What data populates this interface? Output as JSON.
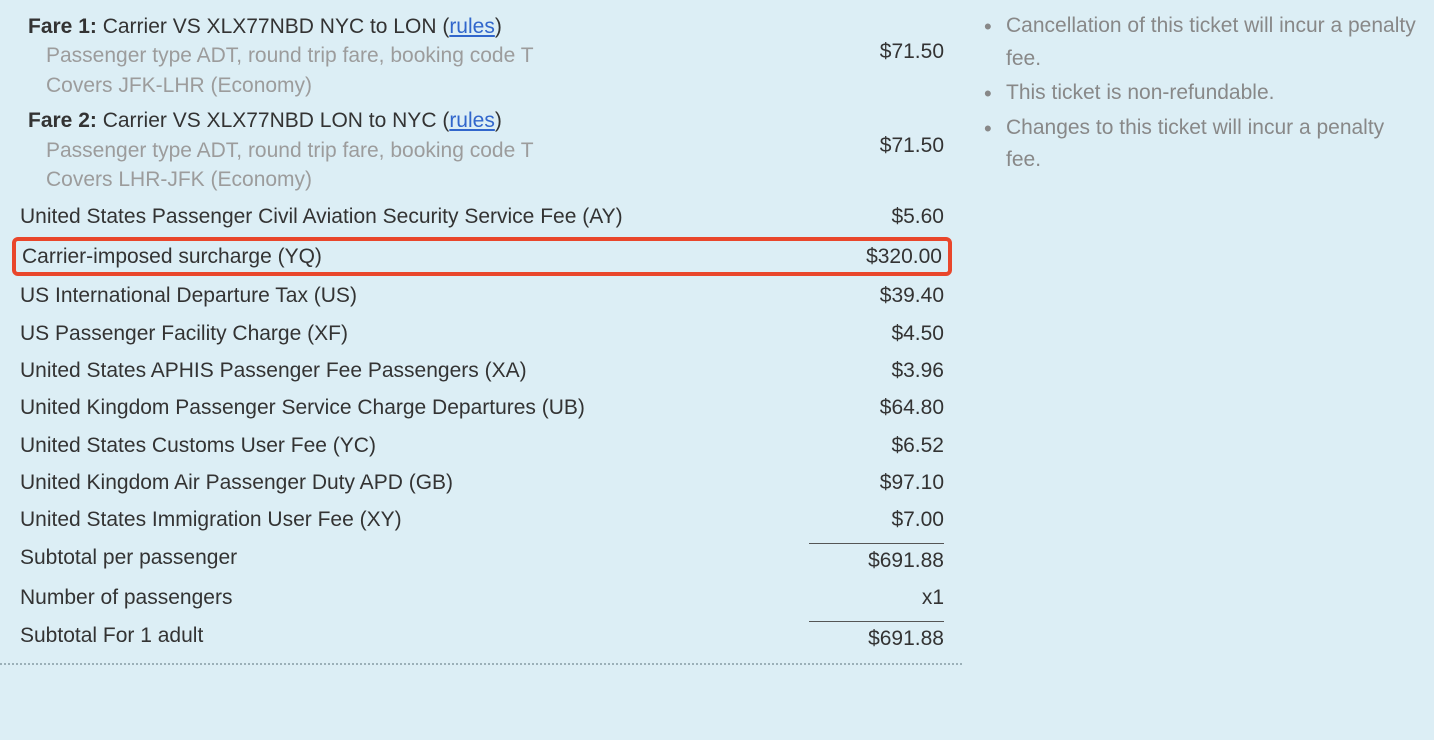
{
  "colors": {
    "background": "#dceef5",
    "text_primary": "#333333",
    "text_muted": "#9c9c9c",
    "link": "#3166cc",
    "highlight_border": "#e9462b",
    "divider": "#555555",
    "dotted_divider": "#9bb0b8",
    "notice_text": "#888888"
  },
  "fares": [
    {
      "label": "Fare 1:",
      "header": " Carrier VS XLX77NBD NYC to LON (",
      "rules_text": "rules",
      "header_close": ")",
      "sub1": "Passenger type ADT, round trip fare, booking code T",
      "sub2": "Covers JFK-LHR (Economy)",
      "price": "$71.50"
    },
    {
      "label": "Fare 2:",
      "header": " Carrier VS XLX77NBD LON to NYC (",
      "rules_text": "rules",
      "header_close": ")",
      "sub1": "Passenger type ADT, round trip fare, booking code T",
      "sub2": "Covers LHR-JFK (Economy)",
      "price": "$71.50"
    }
  ],
  "line_items": [
    {
      "desc": "United States Passenger Civil Aviation Security Service Fee (AY)",
      "amt": "$5.60",
      "highlighted": false
    },
    {
      "desc": "Carrier-imposed surcharge (YQ)",
      "amt": "$320.00",
      "highlighted": true
    },
    {
      "desc": "US International Departure Tax (US)",
      "amt": "$39.40",
      "highlighted": false
    },
    {
      "desc": "US Passenger Facility Charge (XF)",
      "amt": "$4.50",
      "highlighted": false
    },
    {
      "desc": "United States APHIS Passenger Fee Passengers (XA)",
      "amt": "$3.96",
      "highlighted": false
    },
    {
      "desc": "United Kingdom Passenger Service Charge Departures (UB)",
      "amt": "$64.80",
      "highlighted": false
    },
    {
      "desc": "United States Customs User Fee (YC)",
      "amt": "$6.52",
      "highlighted": false
    },
    {
      "desc": "United Kingdom Air Passenger Duty APD (GB)",
      "amt": "$97.10",
      "highlighted": false
    },
    {
      "desc": "United States Immigration User Fee (XY)",
      "amt": "$7.00",
      "highlighted": false
    }
  ],
  "totals": [
    {
      "desc": "Subtotal per passenger",
      "amt": "$691.88",
      "divider_above": true
    },
    {
      "desc": "Number of passengers",
      "amt": "x1",
      "divider_above": false
    },
    {
      "desc": "Subtotal For 1 adult",
      "amt": "$691.88",
      "divider_above": true
    }
  ],
  "notices": [
    "Cancellation of this ticket will incur a penalty fee.",
    "This ticket is non-refundable.",
    "Changes to this ticket will incur a penalty fee."
  ]
}
